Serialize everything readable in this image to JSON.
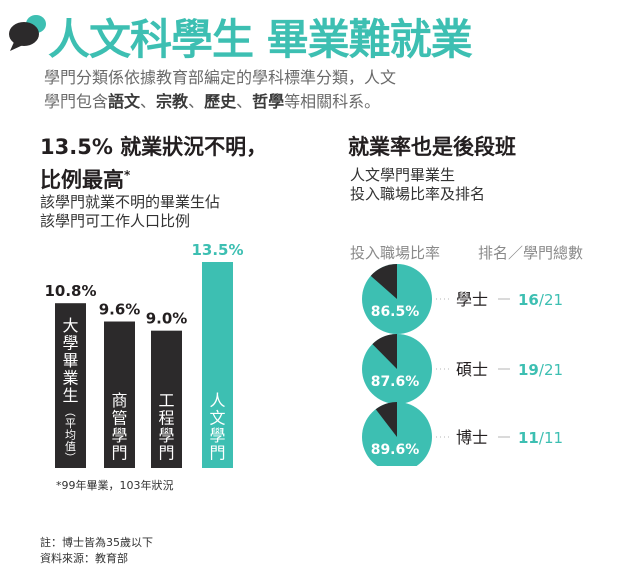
{
  "header": {
    "title": "人文科學生 畢業難就業",
    "intro": {
      "line1": "學門分類係依據教育部編定的學科標準分類，人文",
      "line2_prefix": "學門包含",
      "terms": [
        "語文",
        "宗教",
        "歷史",
        "哲學"
      ],
      "separator": "、",
      "line2_suffix": "等相關科系。"
    }
  },
  "colors": {
    "accent": "#3dbfb2",
    "dark_bar": "#2c2a2b",
    "gray_text": "#8a8a8a",
    "pie_dark": "#2c2a2b"
  },
  "left_panel": {
    "heading_line1": "13.5% 就業狀況不明，",
    "heading_line2": "比例最高",
    "heading_star": "*",
    "sub_line1": "該學門就業不明的畢業生佔",
    "sub_line2": "該學門可工作人口比例",
    "footnote": "*99年畢業，103年狀況"
  },
  "right_panel": {
    "heading": "就業率也是後段班",
    "sub_line1": "人文學門畢業生",
    "sub_line2": "投入職場比率及排名",
    "col_rate": "投入職場比率",
    "col_rank": "排名／學門總數"
  },
  "footer": {
    "note": "註：博士皆為35歲以下",
    "source": "資料來源：教育部"
  },
  "chart_data": [
    {
      "type": "bar",
      "categories": [
        "大學畢業生（平均值）",
        "商管學門",
        "工程學門",
        "人文學門"
      ],
      "values": [
        10.8,
        9.6,
        9.0,
        13.5
      ],
      "value_labels": [
        "10.8%",
        "9.6%",
        "9.0%",
        "13.5%"
      ],
      "highlight_index": 3,
      "bar_labels": [
        {
          "main": "大學畢業生",
          "small": "（平均值）"
        },
        {
          "main": "商管學門",
          "small": ""
        },
        {
          "main": "工程學門",
          "small": ""
        },
        {
          "main": "人文學門",
          "small": ""
        }
      ],
      "ylim": [
        0,
        13.5
      ]
    },
    {
      "type": "pie",
      "rows": [
        {
          "degree": "學士",
          "value": 86.5,
          "label": "86.5%",
          "rank": "16",
          "rank_sep": "/",
          "total": "21"
        },
        {
          "degree": "碩士",
          "value": 87.6,
          "label": "87.6%",
          "rank": "19",
          "rank_sep": "/",
          "total": "21"
        },
        {
          "degree": "博士",
          "value": 89.6,
          "label": "89.6%",
          "rank": "11",
          "rank_sep": "/",
          "total": "11"
        }
      ]
    }
  ]
}
